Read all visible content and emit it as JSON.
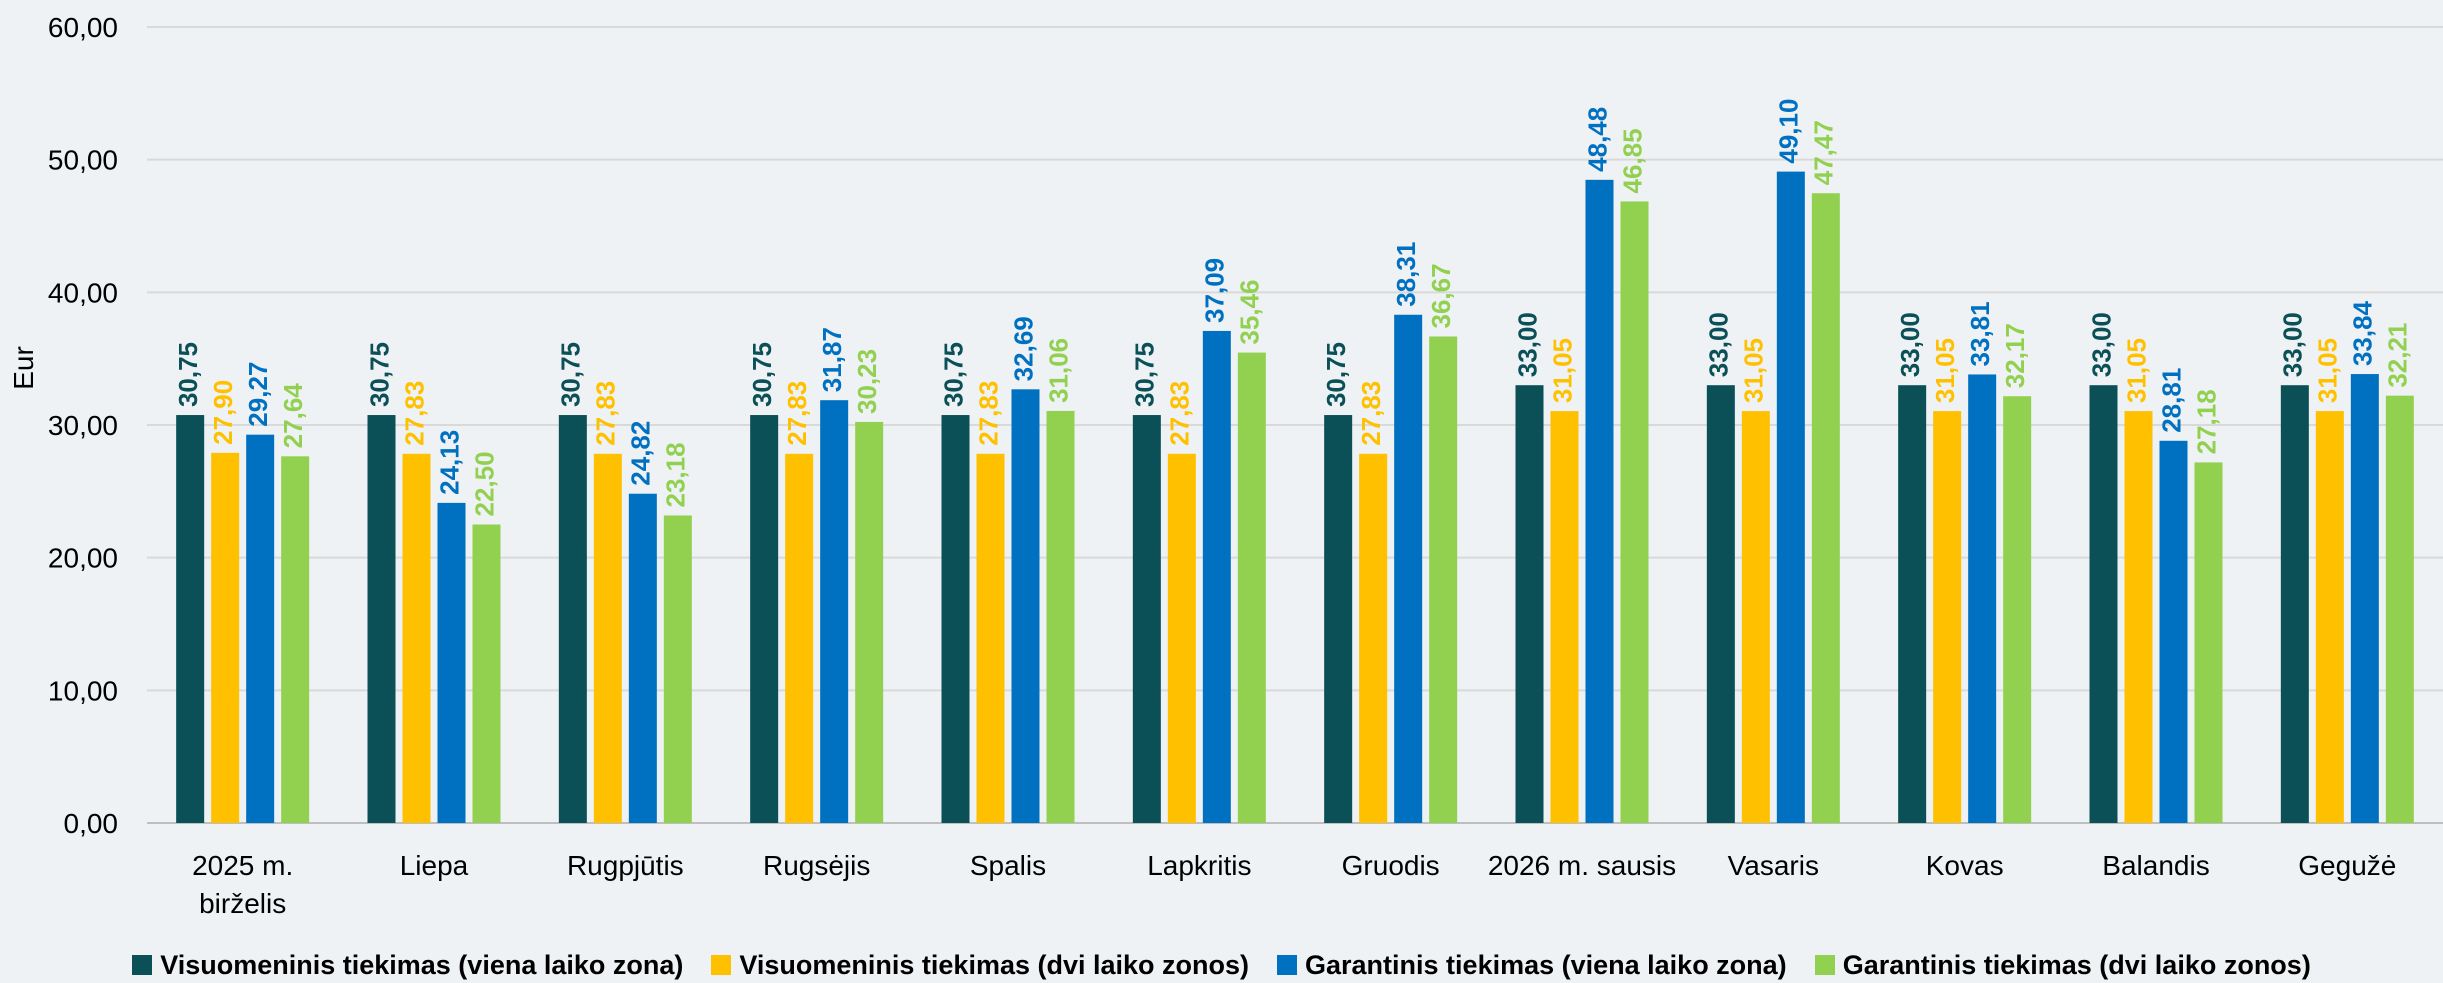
{
  "chart_data": {
    "type": "bar",
    "ylabel": "Eur",
    "ylim": [
      0,
      60
    ],
    "yticks": [
      "0,00",
      "10,00",
      "20,00",
      "30,00",
      "40,00",
      "50,00",
      "60,00"
    ],
    "grid": true,
    "legend_position": "bottom",
    "categories": [
      [
        "2025 m.",
        "birželis"
      ],
      [
        "Liepa"
      ],
      [
        "Rugpjūtis"
      ],
      [
        "Rugsėjis"
      ],
      [
        "Spalis"
      ],
      [
        "Lapkritis"
      ],
      [
        "Gruodis"
      ],
      [
        "2026 m. sausis"
      ],
      [
        "Vasaris"
      ],
      [
        "Kovas"
      ],
      [
        "Balandis"
      ],
      [
        "Gegužė"
      ]
    ],
    "series": [
      {
        "name": "Visuomeninis tiekimas (viena laiko zona)",
        "color": "#0b4f57",
        "values": [
          30.75,
          30.75,
          30.75,
          30.75,
          30.75,
          30.75,
          30.75,
          33.0,
          33.0,
          33.0,
          33.0,
          33.0
        ],
        "labels": [
          "30,75",
          "30,75",
          "30,75",
          "30,75",
          "30,75",
          "30,75",
          "30,75",
          "33,00",
          "33,00",
          "33,00",
          "33,00",
          "33,00"
        ]
      },
      {
        "name": "Visuomeninis tiekimas (dvi laiko zonos)",
        "color": "#ffc000",
        "values": [
          27.9,
          27.83,
          27.83,
          27.83,
          27.83,
          27.83,
          27.83,
          31.05,
          31.05,
          31.05,
          31.05,
          31.05
        ],
        "labels": [
          "27,90",
          "27,83",
          "27,83",
          "27,83",
          "27,83",
          "27,83",
          "27,83",
          "31,05",
          "31,05",
          "31,05",
          "31,05",
          "31,05"
        ]
      },
      {
        "name": "Garantinis tiekimas (viena laiko zona)",
        "color": "#0070c0",
        "values": [
          29.27,
          24.13,
          24.82,
          31.87,
          32.69,
          37.09,
          38.31,
          48.48,
          49.1,
          33.81,
          28.81,
          33.84
        ],
        "labels": [
          "29,27",
          "24,13",
          "24,82",
          "31,87",
          "32,69",
          "37,09",
          "38,31",
          "48,48",
          "49,10",
          "33,81",
          "28,81",
          "33,84"
        ]
      },
      {
        "name": "Garantinis tiekimas (dvi laiko zonos)",
        "color": "#92d050",
        "values": [
          27.64,
          22.5,
          23.18,
          30.23,
          31.06,
          35.46,
          36.67,
          46.85,
          47.47,
          32.17,
          27.18,
          32.21
        ],
        "labels": [
          "27,64",
          "22,50",
          "23,18",
          "30,23",
          "31,06",
          "35,46",
          "36,67",
          "46,85",
          "47,47",
          "32,17",
          "27,18",
          "32,21"
        ]
      }
    ]
  }
}
